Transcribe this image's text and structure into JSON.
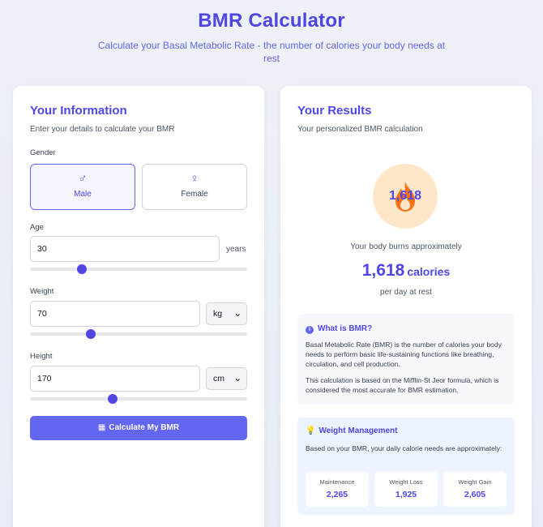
{
  "header": {
    "title": "BMR Calculator",
    "subtitle": "Calculate your Basal Metabolic Rate - the number of calories your body needs at rest"
  },
  "info_card": {
    "title": "Your Information",
    "subtitle": "Enter your details to calculate your BMR",
    "gender": {
      "label": "Gender",
      "options": [
        {
          "label": "Male",
          "icon": "male-symbol-icon",
          "glyph": "♂",
          "selected": true
        },
        {
          "label": "Female",
          "icon": "female-symbol-icon",
          "glyph": "♀",
          "selected": false
        }
      ]
    },
    "age": {
      "label": "Age",
      "value": "30",
      "unit": "years",
      "slider_fraction": 0.24
    },
    "weight": {
      "label": "Weight",
      "value": "70",
      "unit": "kg",
      "slider_fraction": 0.28
    },
    "height": {
      "label": "Height",
      "value": "170",
      "unit": "cm",
      "slider_fraction": 0.38
    },
    "calculate_button": "Calculate My BMR"
  },
  "results_card": {
    "title": "Your Results",
    "subtitle": "Your personalized BMR calculation",
    "circle_value": "1,618",
    "burns_text": "Your body burns approximately",
    "bmr_value": "1,618",
    "bmr_unit": "calories",
    "per_day": "per day at rest",
    "what_is": {
      "title": "What is BMR?",
      "p1": "Basal Metabolic Rate (BMR) is the number of calories your body needs to perform basic life-sustaining functions like breathing, circulation, and cell production.",
      "p2": "This calculation is based on the Mifflin-St Jeor formula, which is considered the most accurate for BMR estimation."
    },
    "weight_management": {
      "title": "Weight Management",
      "description": "Based on your BMR, your daily calorie needs are approximately:",
      "items": [
        {
          "label": "Maintenance",
          "value": "2,265"
        },
        {
          "label": "Weight Loss",
          "value": "1,925"
        },
        {
          "label": "Weight Gain",
          "value": "2,605"
        }
      ]
    }
  },
  "colors": {
    "accent": "#4f46e5",
    "button": "#6366f1",
    "circle": "#fde7c8",
    "flame": "#f97316"
  }
}
